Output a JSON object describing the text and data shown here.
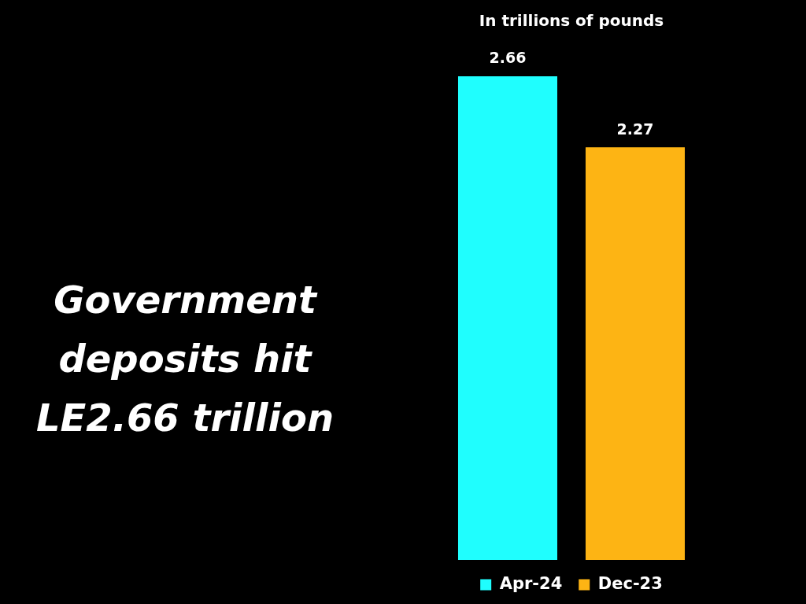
{
  "chart_data": {
    "type": "bar",
    "title": "Government deposits hit LE2.66 trillion",
    "subtitle": "In trillions of pounds",
    "categories": [
      null
    ],
    "series": [
      {
        "name": "Apr-24",
        "color": "#1ffefe",
        "values": [
          2.66
        ]
      },
      {
        "name": "Dec-23",
        "color": "#fdb414",
        "values": [
          2.27
        ]
      }
    ],
    "tick_labels": false,
    "data_labels": true,
    "legend": "bottom"
  }
}
